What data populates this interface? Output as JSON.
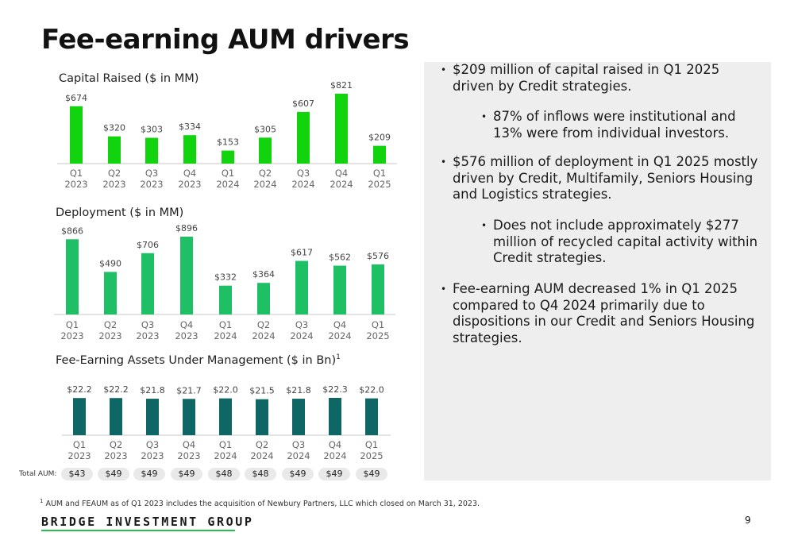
{
  "page": {
    "title": "Fee-earning AUM drivers",
    "page_number": "9",
    "logo_text": "BRIDGE INVESTMENT GROUP",
    "footnote_marker": "1",
    "footnote": "AUM and FEAUM as of Q1 2023 includes the acquisition of Newbury Partners, LLC which closed on March 31, 2023."
  },
  "colors": {
    "capital_raised": "#11d40f",
    "deployment": "#1fbf66",
    "feaum": "#0f6765",
    "logo_accent": "#21c34b",
    "panel": "#eeeeee"
  },
  "bullets": [
    {
      "level": 1,
      "text": "$209 million of capital raised in Q1 2025 driven by Credit strategies."
    },
    {
      "level": 2,
      "text": "87% of inflows were institutional and 13% were from individual investors."
    },
    {
      "level": 1,
      "text": "$576 million of deployment in Q1 2025 mostly driven by Credit, Multifamily, Seniors Housing and Logistics strategies."
    },
    {
      "level": 2,
      "text": "Does not include approximately $277 million of recycled capital activity within Credit strategies."
    },
    {
      "level": 1,
      "text": "Fee-earning AUM decreased 1% in Q1 2025 compared to Q4 2024 primarily due to dispositions in our Credit and Seniors Housing strategies."
    }
  ],
  "total_aum": {
    "label": "Total AUM:",
    "values": [
      "$43",
      "$49",
      "$49",
      "$49",
      "$48",
      "$48",
      "$49",
      "$49",
      "$49"
    ]
  },
  "chart_data": [
    {
      "type": "bar",
      "title": "Capital Raised ($ in MM)",
      "categories": [
        "Q1 2023",
        "Q2 2023",
        "Q3 2023",
        "Q4 2023",
        "Q1 2024",
        "Q2 2024",
        "Q3 2024",
        "Q4 2024",
        "Q1 2025"
      ],
      "values": [
        674,
        320,
        303,
        334,
        153,
        305,
        607,
        821,
        209
      ],
      "data_labels": [
        "$674",
        "$320",
        "$303",
        "$334",
        "$153",
        "$305",
        "$607",
        "$821",
        "$209"
      ],
      "ylim": [
        0,
        821
      ],
      "grid": false,
      "legend": "none"
    },
    {
      "type": "bar",
      "title": "Deployment ($ in MM)",
      "categories": [
        "Q1 2023",
        "Q2 2023",
        "Q3 2023",
        "Q4 2023",
        "Q1 2024",
        "Q2 2024",
        "Q3 2024",
        "Q4 2024",
        "Q1 2025"
      ],
      "values": [
        866,
        490,
        706,
        896,
        332,
        364,
        617,
        562,
        576
      ],
      "data_labels": [
        "$866",
        "$490",
        "$706",
        "$896",
        "$332",
        "$364",
        "$617",
        "$562",
        "$576"
      ],
      "ylim": [
        0,
        896
      ],
      "grid": false,
      "legend": "none"
    },
    {
      "type": "bar",
      "title": "Fee-Earning Assets Under Management ($ in Bn)",
      "title_superscript": "1",
      "categories": [
        "Q1 2023",
        "Q2 2023",
        "Q3 2023",
        "Q4 2023",
        "Q1 2024",
        "Q2 2024",
        "Q3 2024",
        "Q4 2024",
        "Q1 2025"
      ],
      "values": [
        22.2,
        22.2,
        21.8,
        21.7,
        22.0,
        21.5,
        21.8,
        22.3,
        22.0
      ],
      "data_labels": [
        "$22.2",
        "$22.2",
        "$21.8",
        "$21.7",
        "$22.0",
        "$21.5",
        "$21.8",
        "$22.3",
        "$22.0"
      ],
      "ylim": [
        0,
        22.3
      ],
      "grid": false,
      "legend": "none"
    }
  ]
}
